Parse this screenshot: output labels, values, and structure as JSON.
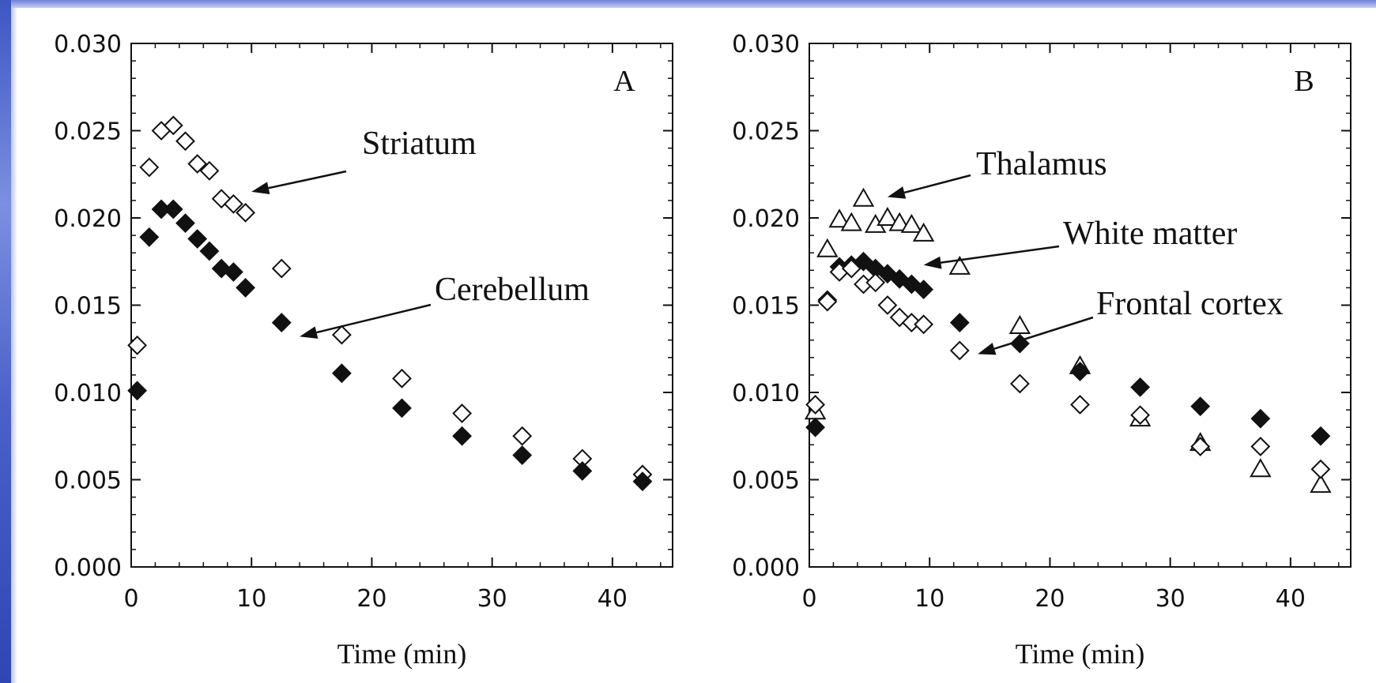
{
  "colors": {
    "text": "#111111",
    "frame": "#111111",
    "marker_fill": "#111111",
    "marker_open": "#ffffff"
  },
  "chart_data": [
    {
      "type": "scatter",
      "panel_label": "A",
      "xlabel": "Time (min)",
      "ylabel": "",
      "xlim": [
        0,
        45
      ],
      "ylim": [
        0,
        0.03
      ],
      "x_ticks": [
        "0",
        "10",
        "20",
        "30",
        "40"
      ],
      "y_ticks": [
        "0.000",
        "0.005",
        "0.010",
        "0.015",
        "0.020",
        "0.025",
        "0.030"
      ],
      "grid": false,
      "series": [
        {
          "name": "Striatum",
          "marker": "diamond-open",
          "points": [
            [
              0.5,
              0.0127
            ],
            [
              1.5,
              0.0229
            ],
            [
              2.5,
              0.025
            ],
            [
              3.5,
              0.0253
            ],
            [
              4.5,
              0.0244
            ],
            [
              5.5,
              0.0231
            ],
            [
              6.5,
              0.0227
            ],
            [
              7.5,
              0.0211
            ],
            [
              8.5,
              0.0208
            ],
            [
              9.5,
              0.0203
            ],
            [
              12.5,
              0.0171
            ],
            [
              17.5,
              0.0133
            ],
            [
              22.5,
              0.0108
            ],
            [
              27.5,
              0.0088
            ],
            [
              32.5,
              0.0075
            ],
            [
              37.5,
              0.0062
            ],
            [
              42.5,
              0.0053
            ]
          ]
        },
        {
          "name": "Cerebellum",
          "marker": "diamond-filled",
          "points": [
            [
              0.5,
              0.0101
            ],
            [
              1.5,
              0.0189
            ],
            [
              2.5,
              0.0205
            ],
            [
              3.5,
              0.0205
            ],
            [
              4.5,
              0.0197
            ],
            [
              5.5,
              0.0188
            ],
            [
              6.5,
              0.0181
            ],
            [
              7.5,
              0.0171
            ],
            [
              8.5,
              0.0169
            ],
            [
              9.5,
              0.016
            ],
            [
              12.5,
              0.014
            ],
            [
              17.5,
              0.0111
            ],
            [
              22.5,
              0.0091
            ],
            [
              27.5,
              0.0075
            ],
            [
              32.5,
              0.0064
            ],
            [
              37.5,
              0.0055
            ],
            [
              42.5,
              0.0049
            ]
          ]
        }
      ],
      "annotations": [
        {
          "text": "Striatum",
          "target": [
            10,
            0.0215
          ]
        },
        {
          "text": "Cerebellum",
          "target": [
            14,
            0.0132
          ]
        }
      ]
    },
    {
      "type": "scatter",
      "panel_label": "B",
      "xlabel": "Time (min)",
      "ylabel": "",
      "xlim": [
        0,
        45
      ],
      "ylim": [
        0,
        0.03
      ],
      "x_ticks": [
        "0",
        "10",
        "20",
        "30",
        "40"
      ],
      "y_ticks": [
        "0.000",
        "0.005",
        "0.010",
        "0.015",
        "0.020",
        "0.025",
        "0.030"
      ],
      "grid": false,
      "series": [
        {
          "name": "Thalamus",
          "marker": "triangle-open",
          "points": [
            [
              0.5,
              0.0089
            ],
            [
              1.5,
              0.0182
            ],
            [
              2.5,
              0.0199
            ],
            [
              3.5,
              0.0197
            ],
            [
              4.5,
              0.0211
            ],
            [
              5.5,
              0.0196
            ],
            [
              6.5,
              0.02
            ],
            [
              7.5,
              0.0197
            ],
            [
              8.5,
              0.0196
            ],
            [
              9.5,
              0.0191
            ],
            [
              12.5,
              0.0172
            ],
            [
              17.5,
              0.0138
            ],
            [
              22.5,
              0.0115
            ],
            [
              27.5,
              0.0085
            ],
            [
              32.5,
              0.0071
            ],
            [
              37.5,
              0.0056
            ],
            [
              42.5,
              0.0047
            ]
          ]
        },
        {
          "name": "White matter",
          "marker": "diamond-filled",
          "points": [
            [
              0.5,
              0.008
            ],
            [
              1.5,
              0.0153
            ],
            [
              2.5,
              0.0172
            ],
            [
              3.5,
              0.0173
            ],
            [
              4.5,
              0.0175
            ],
            [
              5.5,
              0.0171
            ],
            [
              6.5,
              0.0168
            ],
            [
              7.5,
              0.0165
            ],
            [
              8.5,
              0.0162
            ],
            [
              9.5,
              0.0159
            ],
            [
              12.5,
              0.014
            ],
            [
              17.5,
              0.0128
            ],
            [
              22.5,
              0.0112
            ],
            [
              27.5,
              0.0103
            ],
            [
              32.5,
              0.0092
            ],
            [
              37.5,
              0.0085
            ],
            [
              42.5,
              0.0075
            ]
          ]
        },
        {
          "name": "Frontal cortex",
          "marker": "diamond-open",
          "points": [
            [
              0.5,
              0.0093
            ],
            [
              1.5,
              0.0152
            ],
            [
              2.5,
              0.0169
            ],
            [
              3.5,
              0.0171
            ],
            [
              4.5,
              0.0162
            ],
            [
              5.5,
              0.0163
            ],
            [
              6.5,
              0.015
            ],
            [
              7.5,
              0.0143
            ],
            [
              8.5,
              0.014
            ],
            [
              9.5,
              0.0139
            ],
            [
              12.5,
              0.0124
            ],
            [
              17.5,
              0.0105
            ],
            [
              22.5,
              0.0093
            ],
            [
              27.5,
              0.0087
            ],
            [
              32.5,
              0.0069
            ],
            [
              37.5,
              0.0069
            ],
            [
              42.5,
              0.0056
            ]
          ]
        }
      ],
      "annotations": [
        {
          "text": "Thalamus",
          "target": [
            6.5,
            0.0212
          ]
        },
        {
          "text": "White matter",
          "target": [
            9.5,
            0.0173
          ]
        },
        {
          "text": "Frontal cortex",
          "target": [
            14,
            0.0122
          ]
        }
      ]
    }
  ]
}
